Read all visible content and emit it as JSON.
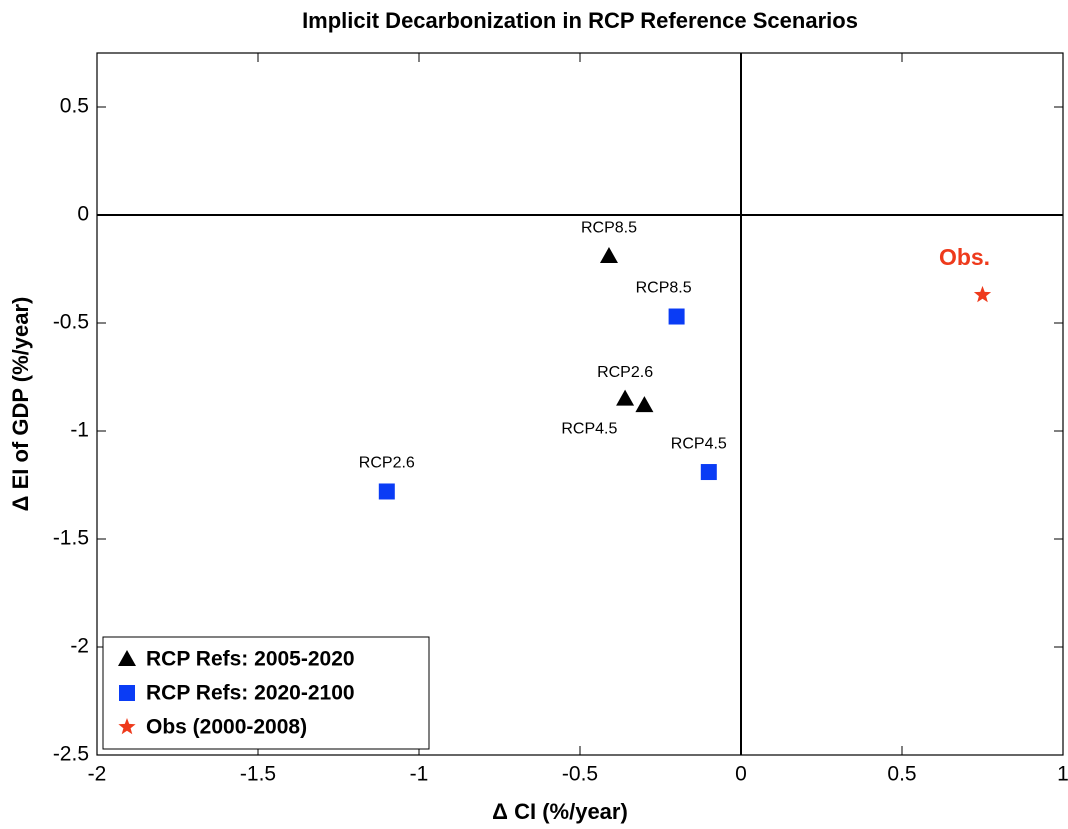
{
  "chart_data": {
    "type": "scatter",
    "title": "Implicit Decarbonization in RCP Reference Scenarios",
    "x_label": "Δ CI (%/year)",
    "y_label": "Δ EI of GDP (%/year)",
    "xlim": [
      -2,
      1
    ],
    "ylim": [
      -2.5,
      0.75
    ],
    "xticks": [
      -2,
      -1.5,
      -1,
      -0.5,
      0,
      0.5,
      1
    ],
    "yticks": [
      -2.5,
      -2,
      -1.5,
      -1,
      -0.5,
      0,
      0.5
    ],
    "grid": false,
    "zero_lines": true,
    "legend": "lower left",
    "series": [
      {
        "name": "RCP Refs: 2005-2020",
        "color": "#000000",
        "marker": "triangle",
        "x": [
          -0.41,
          -0.36,
          -0.3
        ],
        "values": [
          -0.19,
          -0.85,
          -0.88
        ],
        "labels": [
          "RCP8.5",
          "RCP2.6",
          "RCP4.5"
        ]
      },
      {
        "name": "RCP Refs: 2020-2100",
        "color": "#0a3cf5",
        "marker": "square",
        "x": [
          -0.2,
          -0.1,
          -1.1
        ],
        "values": [
          -0.47,
          -1.19,
          -1.28
        ],
        "labels": [
          "RCP8.5",
          "RCP4.5",
          "RCP2.6"
        ]
      },
      {
        "name": "Obs (2000-2008)",
        "color": "#ee3a1c",
        "marker": "star",
        "x": [
          0.75
        ],
        "values": [
          -0.37
        ],
        "labels": [
          "Obs."
        ]
      }
    ]
  }
}
